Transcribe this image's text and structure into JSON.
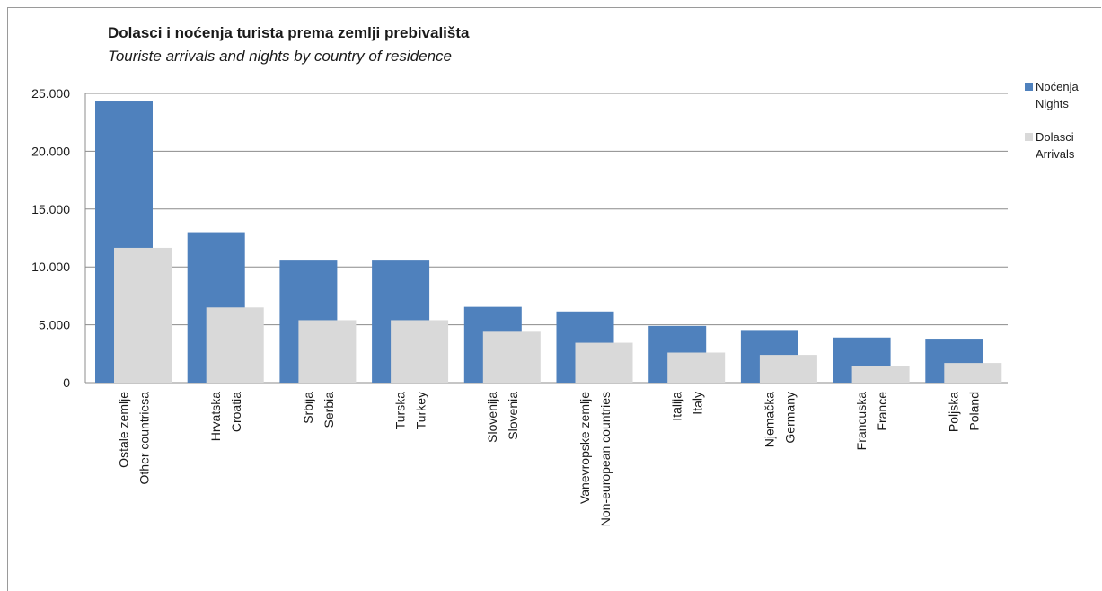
{
  "chart_data": {
    "type": "bar",
    "title": "Dolasci i noćenja turista prema zemlji prebivališta",
    "subtitle": "Touriste arrivals and nights by country of residence",
    "xlabel": "",
    "ylabel": "",
    "ylim": [
      0,
      25000
    ],
    "yticks": [
      "0",
      "5.000",
      "10.000",
      "15.000",
      "20.000",
      "25.000"
    ],
    "ytick_values": [
      0,
      5000,
      10000,
      15000,
      20000,
      25000
    ],
    "grid": true,
    "legend_position": "right",
    "categories": [
      [
        "Ostale zemlje",
        "Other countriesa"
      ],
      [
        "Hrvatska",
        "Croatia"
      ],
      [
        "Srbija",
        "Serbia"
      ],
      [
        "Turska",
        "Turkey"
      ],
      [
        "Slovenija",
        "Slovenia"
      ],
      [
        "Vanevropske zemlje",
        "Non-european  countries"
      ],
      [
        "Italija",
        "Italy"
      ],
      [
        "Njemačka",
        "Germany"
      ],
      [
        "Francuska",
        "France"
      ],
      [
        "Poljska",
        "Poland"
      ]
    ],
    "series": [
      {
        "name": [
          "Noćenja",
          "Nights"
        ],
        "color": "#4f81bd",
        "values": [
          24300,
          13000,
          10550,
          10550,
          6550,
          6150,
          4900,
          4550,
          3900,
          3800
        ]
      },
      {
        "name": [
          "Dolasci",
          "Arrivals"
        ],
        "color": "#d9d9d9",
        "values": [
          11650,
          6500,
          5400,
          5400,
          4400,
          3450,
          2600,
          2400,
          1400,
          1700
        ]
      }
    ]
  }
}
